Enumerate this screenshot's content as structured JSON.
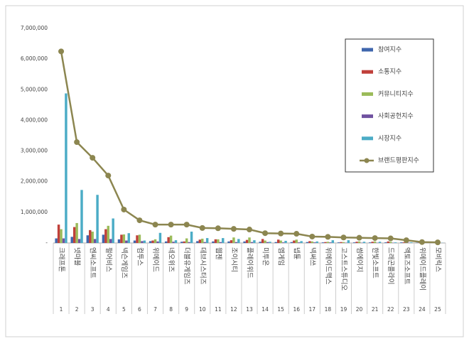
{
  "chart_data": {
    "type": "bar",
    "categories": [
      "크래프톤",
      "넷마블",
      "엔씨소프트",
      "펄어비스",
      "넥슨게임즈",
      "컴투스",
      "위메이드",
      "네오위즈",
      "더블유게임즈",
      "데브시스터즈",
      "웹젠",
      "조이시티",
      "플레이위드",
      "미투온",
      "엠게임",
      "넵튠",
      "넥써쓰",
      "위메이드맥스",
      "고스트스튜디오",
      "썸에이지",
      "한빛소프트",
      "드래곤플라이",
      "액토즈소프트",
      "위메이드플레이",
      "모비릭스"
    ],
    "ranks": [
      1,
      2,
      3,
      4,
      5,
      6,
      7,
      8,
      9,
      10,
      11,
      12,
      13,
      14,
      15,
      16,
      17,
      18,
      19,
      20,
      21,
      22,
      23,
      24,
      25
    ],
    "ylim": [
      0,
      7000000
    ],
    "yticks": [
      {
        "value": 0,
        "label": "-"
      },
      {
        "value": 1000000,
        "label": "1,000,000"
      },
      {
        "value": 2000000,
        "label": "2,000,000"
      },
      {
        "value": 3000000,
        "label": "3,000,000"
      },
      {
        "value": 4000000,
        "label": "4,000,000"
      },
      {
        "value": 5000000,
        "label": "5,000,000"
      },
      {
        "value": 6000000,
        "label": "6,000,000"
      },
      {
        "value": 7000000,
        "label": "7,000,000"
      }
    ],
    "grid": false,
    "series": [
      {
        "name": "참여지수",
        "color": "#3f66ad",
        "type": "bar",
        "values": [
          150000,
          200000,
          250000,
          270000,
          120000,
          80000,
          60000,
          50000,
          40000,
          60000,
          50000,
          50000,
          50000,
          40000,
          30000,
          30000,
          30000,
          20000,
          20000,
          20000,
          20000,
          20000,
          20000,
          10000,
          5000
        ]
      },
      {
        "name": "소통지수",
        "color": "#c0403a",
        "type": "bar",
        "values": [
          600000,
          520000,
          420000,
          450000,
          270000,
          250000,
          80000,
          190000,
          50000,
          110000,
          120000,
          90000,
          100000,
          130000,
          110000,
          80000,
          60000,
          30000,
          30000,
          40000,
          40000,
          50000,
          20000,
          10000,
          5000
        ]
      },
      {
        "name": "커뮤니티지수",
        "color": "#9bbb59",
        "type": "bar",
        "values": [
          450000,
          650000,
          370000,
          560000,
          280000,
          270000,
          120000,
          240000,
          150000,
          140000,
          120000,
          180000,
          180000,
          80000,
          80000,
          110000,
          50000,
          40000,
          30000,
          50000,
          50000,
          40000,
          20000,
          10000,
          5000
        ]
      },
      {
        "name": "사회공헌지수",
        "color": "#7052a0",
        "type": "bar",
        "values": [
          150000,
          130000,
          130000,
          130000,
          80000,
          60000,
          50000,
          40000,
          30000,
          30000,
          30000,
          30000,
          30000,
          30000,
          20000,
          20000,
          20000,
          20000,
          10000,
          10000,
          10000,
          10000,
          10000,
          5000,
          3000
        ]
      },
      {
        "name": "시장지수",
        "color": "#4bacc6",
        "type": "bar",
        "values": [
          4880000,
          1730000,
          1570000,
          800000,
          320000,
          80000,
          330000,
          90000,
          370000,
          160000,
          160000,
          130000,
          90000,
          40000,
          70000,
          60000,
          50000,
          90000,
          90000,
          40000,
          40000,
          20000,
          20000,
          5000,
          5000
        ]
      },
      {
        "name": "브랜드평판지수",
        "color": "#8c8650",
        "type": "line",
        "values": [
          6250000,
          3290000,
          2780000,
          2200000,
          1090000,
          740000,
          600000,
          600000,
          600000,
          490000,
          480000,
          460000,
          440000,
          320000,
          310000,
          300000,
          210000,
          200000,
          180000,
          170000,
          160000,
          150000,
          90000,
          30000,
          20000
        ]
      }
    ]
  }
}
